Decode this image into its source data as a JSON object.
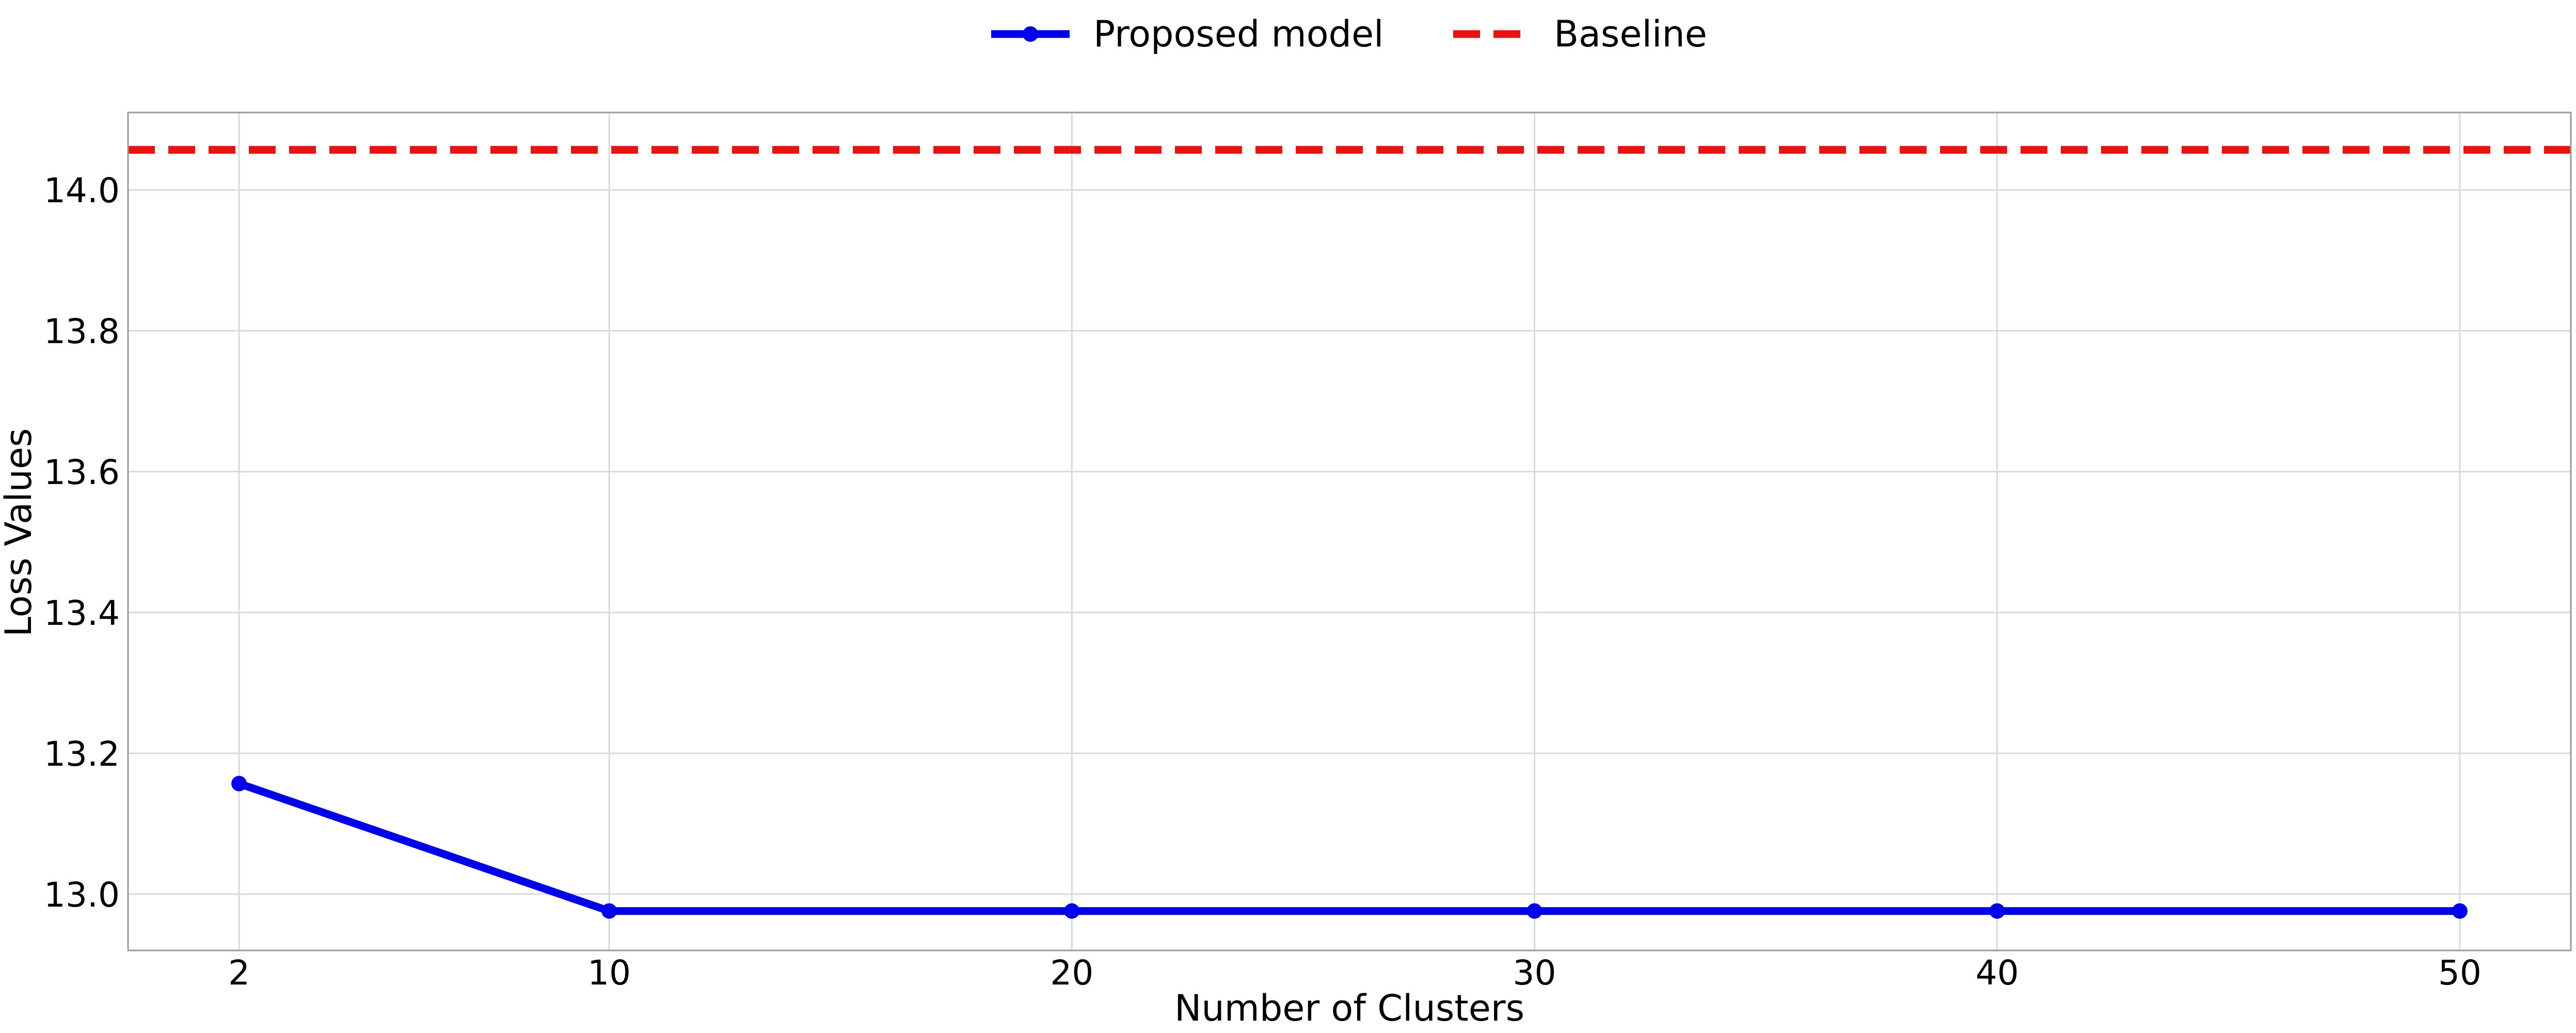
{
  "chart_data": {
    "type": "line",
    "title": "",
    "xlabel": "Number of Clusters",
    "ylabel": "Loss Values",
    "x": [
      2,
      10,
      20,
      30,
      40,
      50
    ],
    "x_tick_labels": [
      "2",
      "10",
      "20",
      "30",
      "40",
      "50"
    ],
    "y_tick_values": [
      13.0,
      13.2,
      13.4,
      13.6,
      13.8,
      14.0
    ],
    "y_tick_labels": [
      "13.0",
      "13.2",
      "13.4",
      "13.6",
      "13.8",
      "14.0"
    ],
    "xlim": [
      -0.4,
      52.4
    ],
    "ylim": [
      12.92,
      14.11
    ],
    "grid": true,
    "legend_position": "top-center",
    "series": [
      {
        "name": "Proposed model",
        "values": [
          13.157,
          12.976,
          12.976,
          12.976,
          12.976,
          12.976
        ],
        "color": "#0000ee",
        "style": "solid-with-markers"
      },
      {
        "name": "Baseline",
        "values": [
          14.057,
          14.057,
          14.057,
          14.057,
          14.057,
          14.057
        ],
        "color": "#ee1111",
        "style": "dashed"
      }
    ]
  }
}
